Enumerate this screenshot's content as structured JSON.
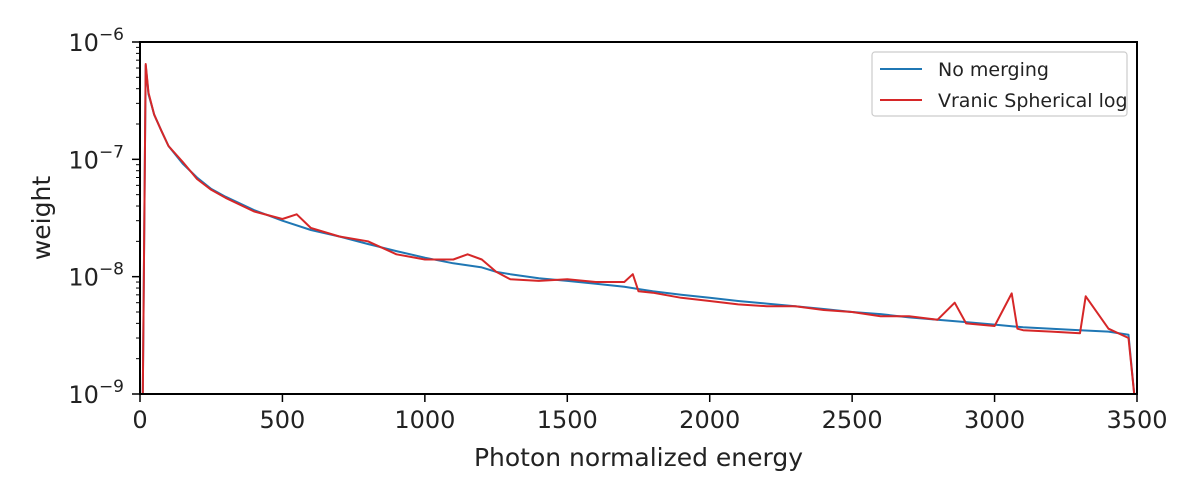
{
  "chart_data": {
    "type": "line",
    "title": "",
    "xlabel": "Photon normalized energy",
    "ylabel": "weight",
    "xlim": [
      0,
      3500
    ],
    "ylim": [
      1e-09,
      1e-06
    ],
    "yscale": "log",
    "grid": false,
    "legend_placement": "top-right",
    "x_ticks": [
      0,
      500,
      1000,
      1500,
      2000,
      2500,
      3000,
      3500
    ],
    "x_tick_labels": [
      "0",
      "500",
      "1000",
      "1500",
      "2000",
      "2500",
      "3000",
      "3500"
    ],
    "y_ticks": [
      1e-09,
      1e-08,
      1e-07,
      1e-06
    ],
    "y_tick_labels": [
      {
        "base": "10",
        "exp": "−9"
      },
      {
        "base": "10",
        "exp": "−8"
      },
      {
        "base": "10",
        "exp": "−7"
      },
      {
        "base": "10",
        "exp": "−6"
      }
    ],
    "series": [
      {
        "name": "No merging",
        "color": "#1f77b4",
        "x": [
          10,
          20,
          30,
          50,
          75,
          100,
          150,
          200,
          250,
          300,
          400,
          500,
          600,
          700,
          800,
          900,
          1000,
          1100,
          1200,
          1250,
          1300,
          1400,
          1500,
          1600,
          1700,
          1800,
          1900,
          2000,
          2100,
          2200,
          2300,
          2400,
          2500,
          2600,
          2700,
          2800,
          2900,
          3000,
          3100,
          3200,
          3300,
          3400,
          3470,
          3490
        ],
        "y": [
          1e-09,
          6.3e-07,
          3.6e-07,
          2.4e-07,
          1.75e-07,
          1.3e-07,
          9.2e-08,
          7e-08,
          5.6e-08,
          4.8e-08,
          3.7e-08,
          3e-08,
          2.5e-08,
          2.2e-08,
          1.9e-08,
          1.65e-08,
          1.45e-08,
          1.3e-08,
          1.2e-08,
          1.1e-08,
          1.05e-08,
          9.7e-09,
          9.2e-09,
          8.7e-09,
          8.2e-09,
          7.5e-09,
          7e-09,
          6.6e-09,
          6.2e-09,
          5.9e-09,
          5.6e-09,
          5.3e-09,
          5e-09,
          4.8e-09,
          4.5e-09,
          4.3e-09,
          4.1e-09,
          3.9e-09,
          3.7e-09,
          3.6e-09,
          3.5e-09,
          3.4e-09,
          3.2e-09,
          1e-09
        ]
      },
      {
        "name": "Vranic Spherical log",
        "color": "#d62728",
        "x": [
          10,
          20,
          30,
          50,
          75,
          100,
          150,
          200,
          250,
          300,
          400,
          500,
          550,
          600,
          700,
          800,
          900,
          1000,
          1100,
          1150,
          1200,
          1250,
          1300,
          1400,
          1500,
          1600,
          1700,
          1730,
          1750,
          1800,
          1900,
          2000,
          2100,
          2200,
          2300,
          2400,
          2500,
          2600,
          2700,
          2800,
          2860,
          2900,
          3000,
          3060,
          3080,
          3100,
          3200,
          3300,
          3320,
          3400,
          3470,
          3490
        ],
        "y": [
          1e-09,
          6.5e-07,
          3.7e-07,
          2.4e-07,
          1.75e-07,
          1.3e-07,
          9.5e-08,
          6.8e-08,
          5.5e-08,
          4.7e-08,
          3.6e-08,
          3.1e-08,
          3.4e-08,
          2.6e-08,
          2.2e-08,
          2e-08,
          1.55e-08,
          1.4e-08,
          1.4e-08,
          1.55e-08,
          1.4e-08,
          1.1e-08,
          9.5e-09,
          9.2e-09,
          9.5e-09,
          9e-09,
          9e-09,
          1.05e-08,
          7.5e-09,
          7.3e-09,
          6.6e-09,
          6.2e-09,
          5.8e-09,
          5.6e-09,
          5.6e-09,
          5.2e-09,
          5e-09,
          4.6e-09,
          4.6e-09,
          4.3e-09,
          6e-09,
          4e-09,
          3.8e-09,
          7.2e-09,
          3.6e-09,
          3.5e-09,
          3.4e-09,
          3.3e-09,
          6.8e-09,
          3.6e-09,
          3e-09,
          1e-09
        ]
      }
    ]
  }
}
